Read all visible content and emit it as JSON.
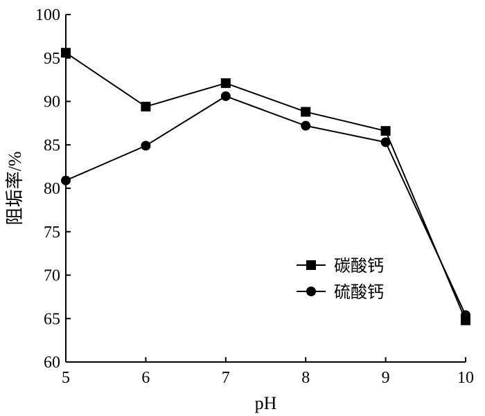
{
  "chart_data": {
    "type": "line",
    "title": "",
    "xlabel": "pH",
    "ylabel": "阻垢率/%",
    "x": [
      5,
      6,
      7,
      8,
      9,
      10
    ],
    "xlim": [
      5,
      10
    ],
    "ylim": [
      60,
      100
    ],
    "yticks": [
      60,
      65,
      70,
      75,
      80,
      85,
      90,
      95,
      100
    ],
    "xticks": [
      5,
      6,
      7,
      8,
      9,
      10
    ],
    "grid": false,
    "legend_position": "middle-right",
    "series": [
      {
        "name": "碳酸钙",
        "marker": "square",
        "values": [
          95.6,
          89.4,
          92.1,
          88.8,
          86.6,
          64.8
        ]
      },
      {
        "name": "硫酸钙",
        "marker": "circle",
        "values": [
          80.9,
          84.9,
          90.6,
          87.2,
          85.3,
          65.4
        ]
      }
    ]
  }
}
